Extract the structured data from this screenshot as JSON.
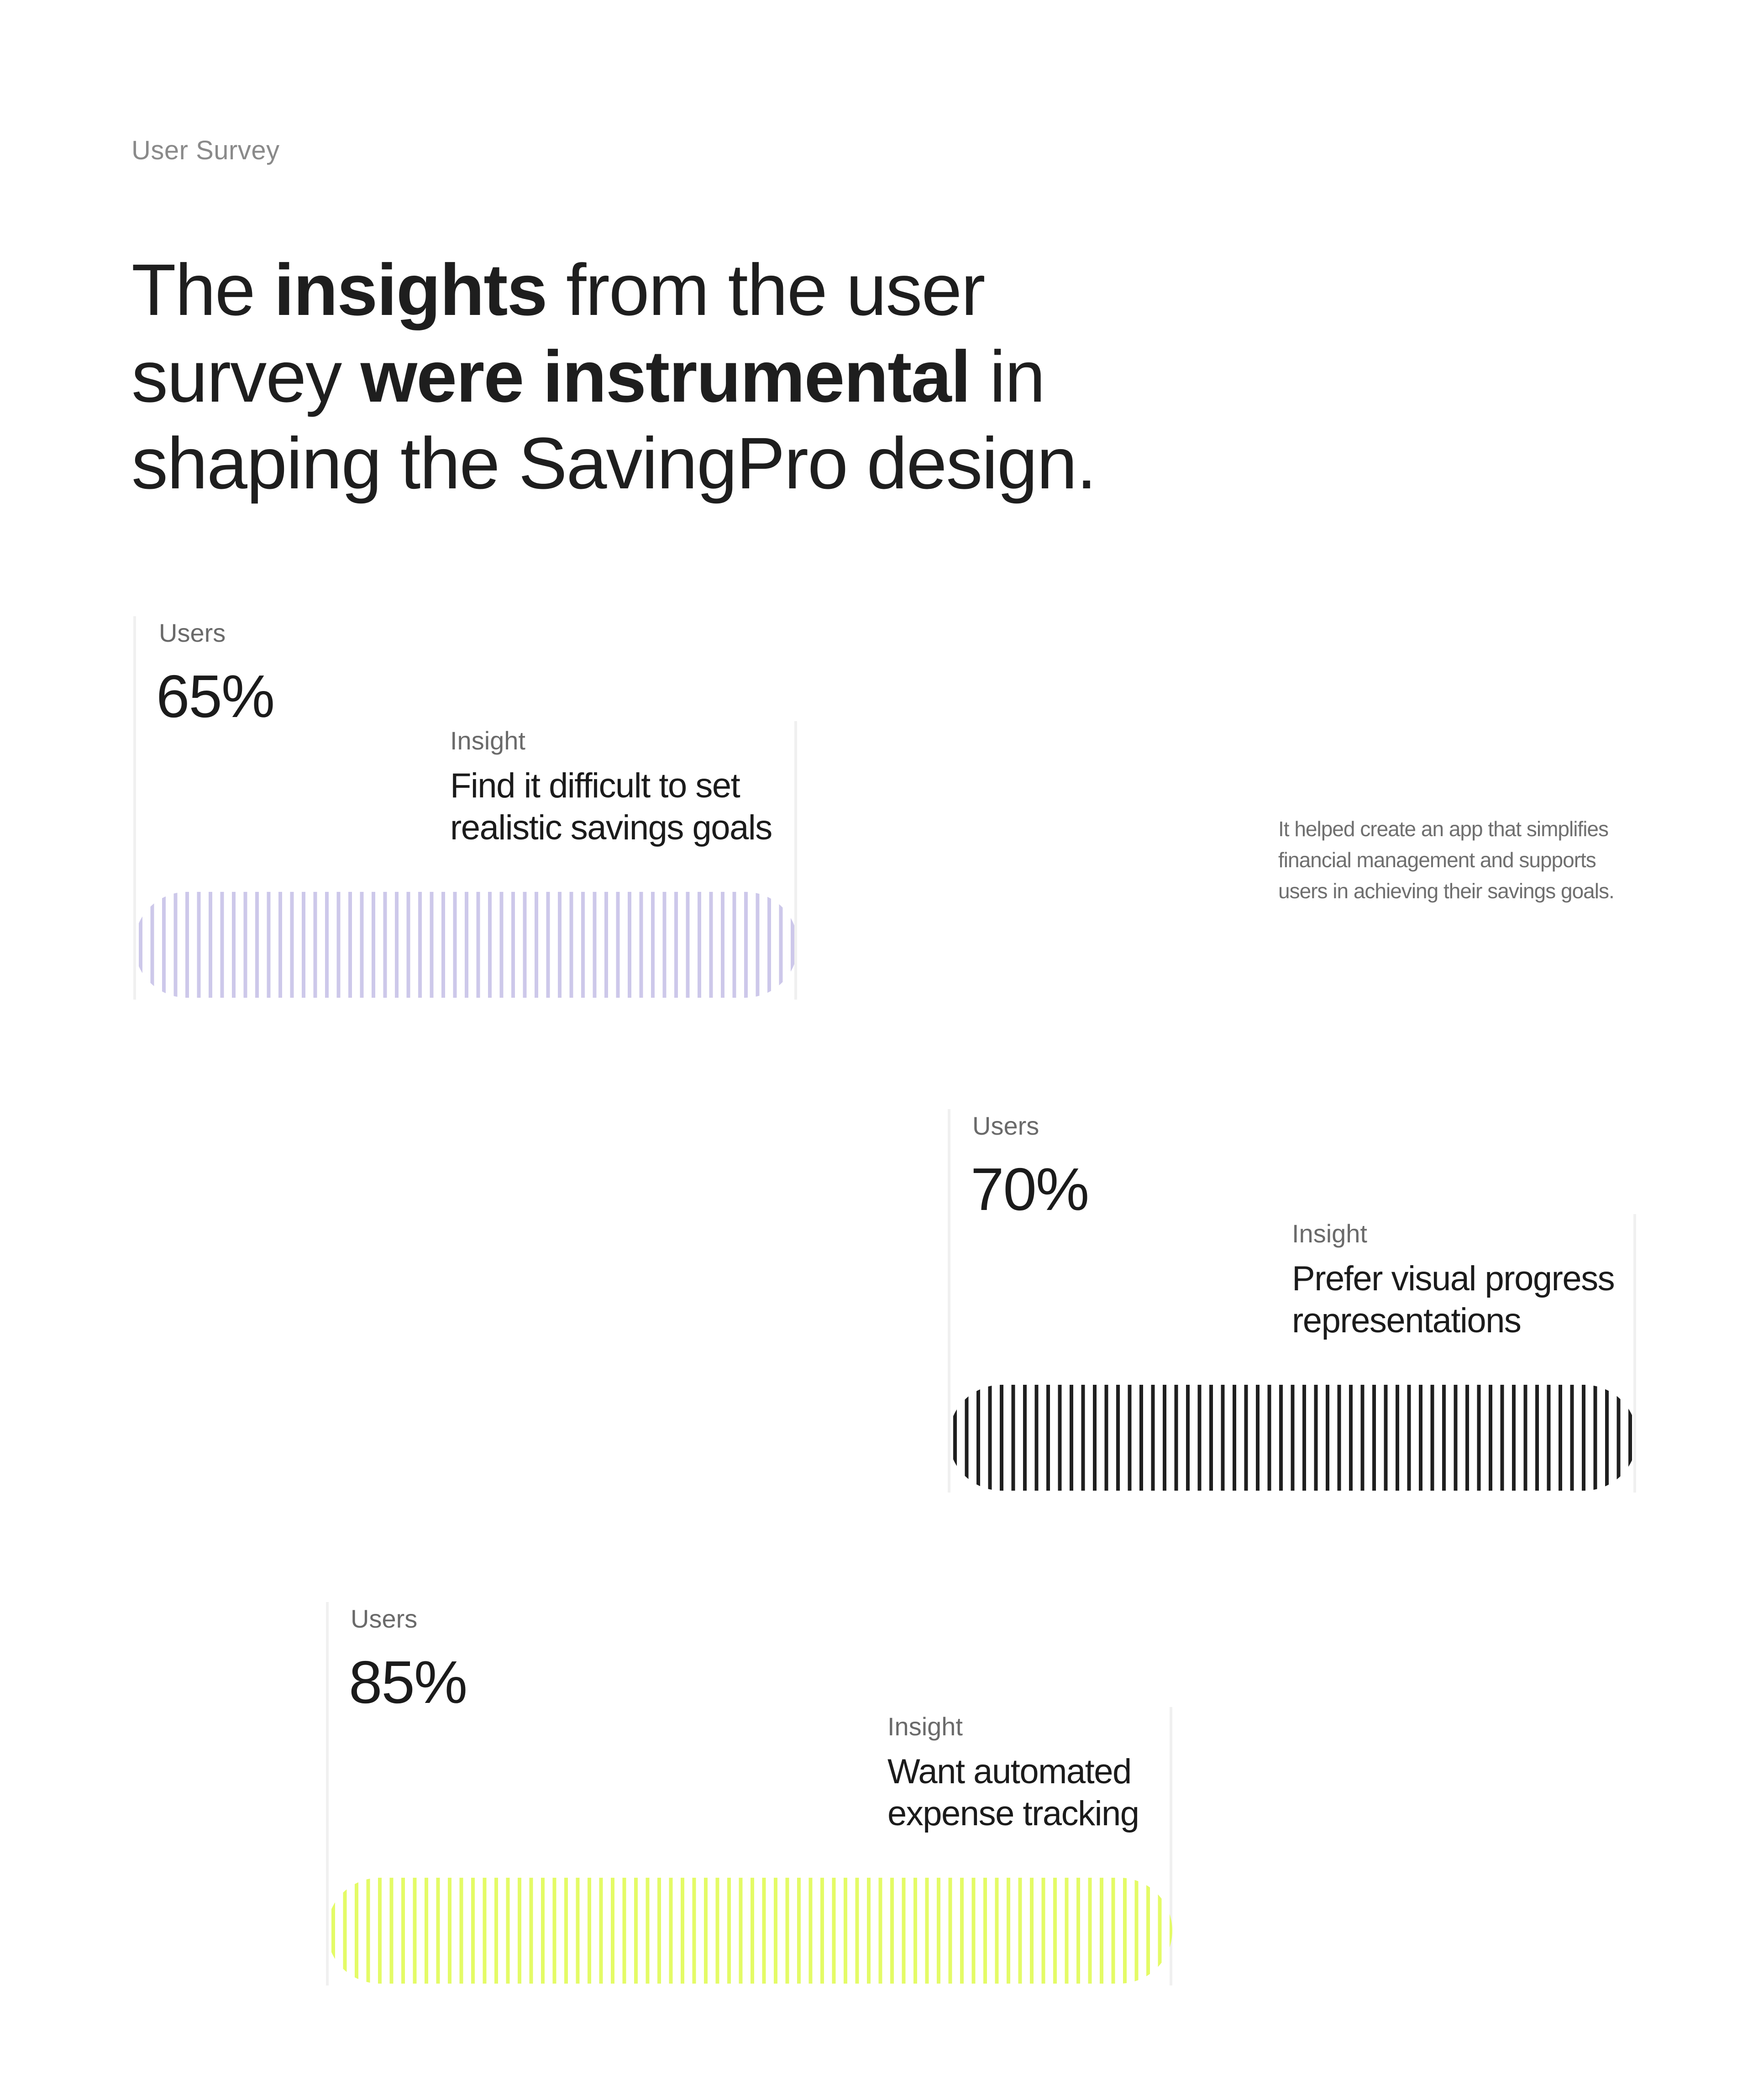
{
  "section": {
    "eyebrow": "User Survey",
    "headline_parts": [
      "The ",
      "insights",
      " from the user survey ",
      "were instrumental",
      " in shaping the SavingPro design."
    ],
    "side_note": "It helped create an app that simplifies financial management and supports users in achieving their savings goals."
  },
  "cards": [
    {
      "users_label": "Users",
      "users_value": "65%",
      "insight_label": "Insight",
      "insight_text": "Find it difficult to set realistic savings goals",
      "stripe_color": "#cdc8ea"
    },
    {
      "users_label": "Users",
      "users_value": "70%",
      "insight_label": "Insight",
      "insight_text": "Prefer visual progress representations",
      "stripe_color": "#1f1f1f"
    },
    {
      "users_label": "Users",
      "users_value": "85%",
      "insight_label": "Insight",
      "insight_text": "Want automated expense tracking",
      "stripe_color": "#e4fb66"
    }
  ]
}
